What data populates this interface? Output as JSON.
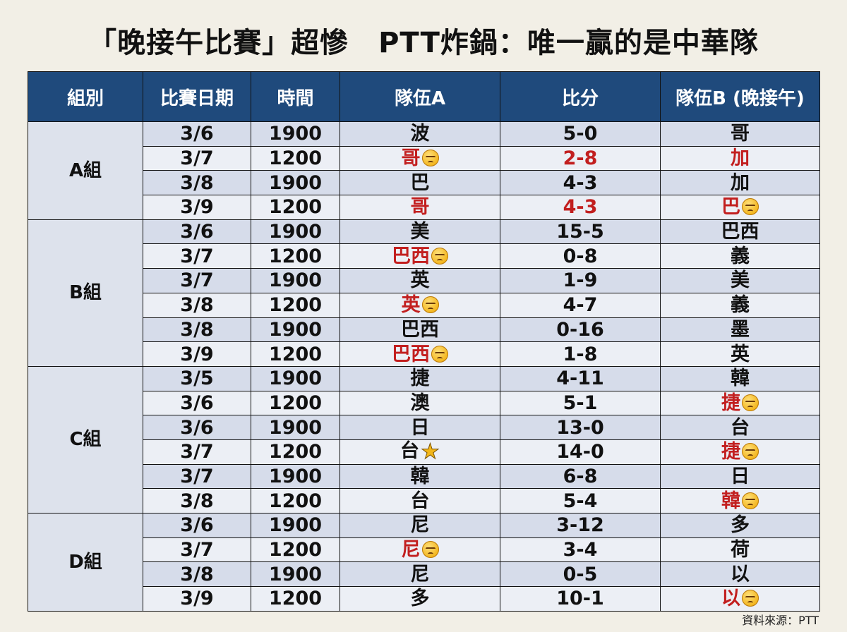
{
  "title_left": "「晚接午比賽」超慘",
  "title_right": "PTT炸鍋：唯一贏的是中華隊",
  "headers": {
    "group": "組別",
    "date": "比賽日期",
    "time": "時間",
    "team_a": "隊伍A",
    "score": "比分",
    "team_b": "隊伍B (晚接午)"
  },
  "groups": {
    "A": "A組",
    "B": "B組",
    "C": "C組",
    "D": "D組"
  },
  "rows": [
    {
      "date": "3/6",
      "time": "1900",
      "team_a": "波",
      "score": "5-0",
      "team_b": "哥"
    },
    {
      "date": "3/7",
      "time": "1200",
      "team_a": "哥",
      "score": "2-8",
      "team_b": "加"
    },
    {
      "date": "3/8",
      "time": "1900",
      "team_a": "巴",
      "score": "4-3",
      "team_b": "加"
    },
    {
      "date": "3/9",
      "time": "1200",
      "team_a": "哥",
      "score": "4-3",
      "team_b": "巴"
    },
    {
      "date": "3/6",
      "time": "1900",
      "team_a": "美",
      "score": "15-5",
      "team_b": "巴西"
    },
    {
      "date": "3/7",
      "time": "1200",
      "team_a": "巴西",
      "score": "0-8",
      "team_b": "義"
    },
    {
      "date": "3/7",
      "time": "1900",
      "team_a": "英",
      "score": "1-9",
      "team_b": "美"
    },
    {
      "date": "3/8",
      "time": "1200",
      "team_a": "英",
      "score": "4-7",
      "team_b": "義"
    },
    {
      "date": "3/8",
      "time": "1900",
      "team_a": "巴西",
      "score": "0-16",
      "team_b": "墨"
    },
    {
      "date": "3/9",
      "time": "1200",
      "team_a": "巴西",
      "score": "1-8",
      "team_b": "英"
    },
    {
      "date": "3/5",
      "time": "1900",
      "team_a": "捷",
      "score": "4-11",
      "team_b": "韓"
    },
    {
      "date": "3/6",
      "time": "1200",
      "team_a": "澳",
      "score": "5-1",
      "team_b": "捷"
    },
    {
      "date": "3/6",
      "time": "1900",
      "team_a": "日",
      "score": "13-0",
      "team_b": "台"
    },
    {
      "date": "3/7",
      "time": "1200",
      "team_a": "台",
      "score": "14-0",
      "team_b": "捷"
    },
    {
      "date": "3/7",
      "time": "1900",
      "team_a": "韓",
      "score": "6-8",
      "team_b": "日"
    },
    {
      "date": "3/8",
      "time": "1200",
      "team_a": "台",
      "score": "5-4",
      "team_b": "韓"
    },
    {
      "date": "3/6",
      "time": "1900",
      "team_a": "尼",
      "score": "3-12",
      "team_b": "多"
    },
    {
      "date": "3/7",
      "time": "1200",
      "team_a": "尼",
      "score": "3-4",
      "team_b": "荷"
    },
    {
      "date": "3/8",
      "time": "1900",
      "team_a": "尼",
      "score": "0-5",
      "team_b": "以"
    },
    {
      "date": "3/9",
      "time": "1200",
      "team_a": "多",
      "score": "10-1",
      "team_b": "以"
    }
  ],
  "source": "資料來源：PTT",
  "colors": {
    "header_bg": "#1f4a7c",
    "highlight_red": "#c21f1f",
    "row_dark": "#d6dcea",
    "row_light": "#eceff5"
  },
  "icons": {
    "sad": "disappointed-face-emoji",
    "star": "star-emoji"
  }
}
